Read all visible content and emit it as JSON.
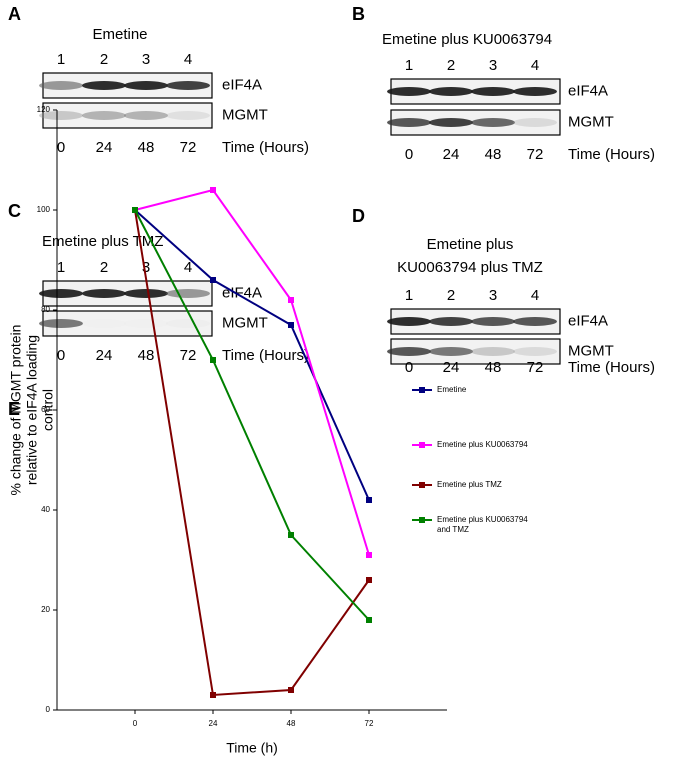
{
  "panels": [
    {
      "letter": "A",
      "title": [
        "Emetine"
      ],
      "lanes": [
        "1",
        "2",
        "3",
        "4"
      ],
      "bands": [
        "eIF4A",
        "MGMT"
      ],
      "times": [
        "0",
        "24",
        "48",
        "72"
      ],
      "time_label": "Time (Hours)"
    },
    {
      "letter": "B",
      "title": [
        "Emetine plus KU0063794"
      ],
      "lanes": [
        "1",
        "2",
        "3",
        "4"
      ],
      "bands": [
        "eIF4A",
        "MGMT"
      ],
      "times": [
        "0",
        "24",
        "48",
        "72"
      ],
      "time_label": "Time (Hours)"
    },
    {
      "letter": "C",
      "title": [
        "Emetine plus TMZ"
      ],
      "lanes": [
        "1",
        "2",
        "3",
        "4"
      ],
      "bands": [
        "eIF4A",
        "MGMT"
      ],
      "times": [
        "0",
        "24",
        "48",
        "72"
      ],
      "time_label": "Time (Hours)"
    },
    {
      "letter": "D",
      "title": [
        "Emetine plus",
        "KU0063794 plus TMZ"
      ],
      "lanes": [
        "1",
        "2",
        "3",
        "4"
      ],
      "bands": [
        "eIF4A",
        "MGMT"
      ],
      "times": [
        "0",
        "24",
        "48",
        "72"
      ],
      "time_label": "Time (Hours)"
    }
  ],
  "chart_data": {
    "type": "line",
    "letter": "E",
    "x_label": "Time (h)",
    "y_label": [
      "% change of MGMT protein",
      "relative to eIF4A loading",
      "control"
    ],
    "x": [
      0,
      24,
      48,
      72
    ],
    "xlim": [
      -24,
      96
    ],
    "xticks": [
      0,
      24,
      48,
      72
    ],
    "ylim": [
      0,
      120
    ],
    "yticks": [
      0,
      20,
      40,
      60,
      80,
      100,
      120
    ],
    "series": [
      {
        "name": "Emetine",
        "color": "#000080",
        "values": [
          100,
          86,
          77,
          42
        ]
      },
      {
        "name": "Emetine plus KU0063794",
        "color": "#ff00ff",
        "values": [
          100,
          104,
          82,
          31
        ]
      },
      {
        "name": "Emetine plus TMZ",
        "color": "#800000",
        "values": [
          100,
          3,
          4,
          26
        ]
      },
      {
        "name": "Emetine plus KU0063794 and TMZ",
        "color": "#008000",
        "values": [
          100,
          70,
          35,
          18
        ]
      }
    ]
  }
}
